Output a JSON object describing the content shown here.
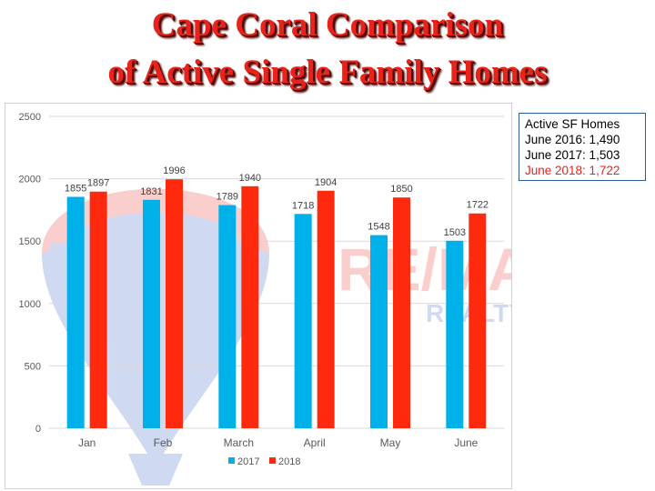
{
  "title": {
    "line1": "Cape Coral Comparison",
    "line2": "of Active Single Family Homes"
  },
  "info_box": {
    "lines": [
      {
        "text": "Active SF Homes",
        "color": "#000000"
      },
      {
        "text": "June 2016: 1,490",
        "color": "#000000"
      },
      {
        "text": "June 2017: 1,503",
        "color": "#000000"
      },
      {
        "text": "June 2018: 1,722",
        "color": "#e8231a"
      }
    ]
  },
  "watermark": {
    "brand": "RE/MAX",
    "subtitle": "REALTY TEAM"
  },
  "chart_data": {
    "type": "bar",
    "categories": [
      "Jan",
      "Feb",
      "March",
      "April",
      "May",
      "June"
    ],
    "series": [
      {
        "name": "2017",
        "color": "#00b0e8",
        "values": [
          1855,
          1831,
          1789,
          1718,
          1548,
          1503
        ]
      },
      {
        "name": "2018",
        "color": "#ff2a0e",
        "values": [
          1897,
          1996,
          1940,
          1904,
          1850,
          1722
        ]
      }
    ],
    "ylim": [
      0,
      2500
    ],
    "yticks": [
      0,
      500,
      1000,
      1500,
      2000,
      2500
    ],
    "grid": true,
    "legend": "bottom",
    "data_labels": true,
    "title": "",
    "xlabel": "",
    "ylabel": ""
  }
}
